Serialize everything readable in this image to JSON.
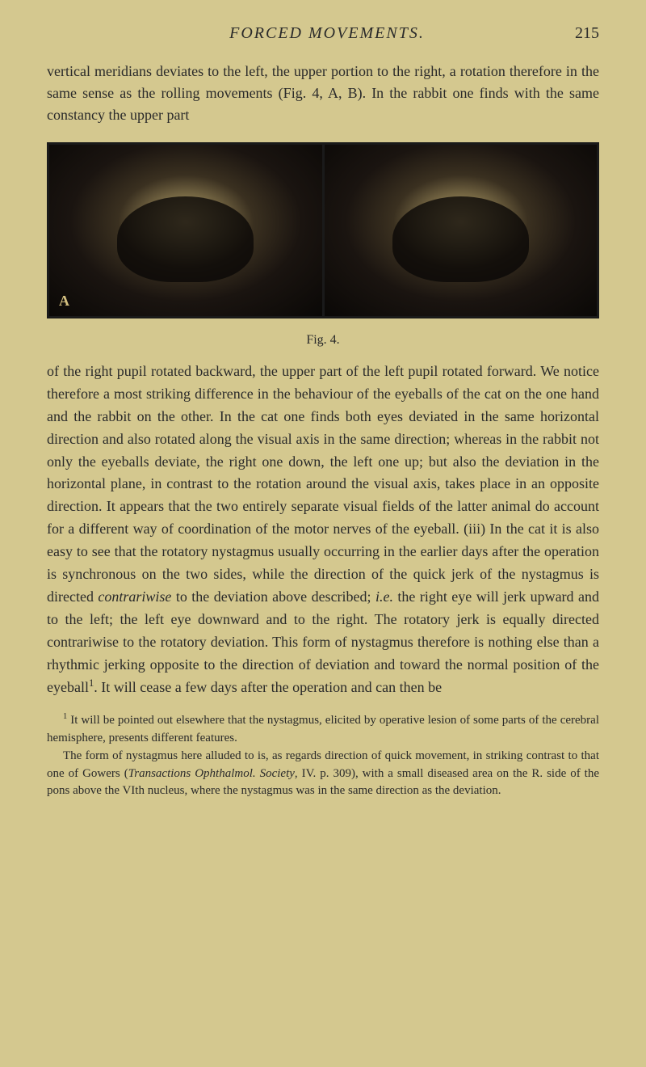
{
  "page": {
    "running_head": "FORCED MOVEMENTS.",
    "page_number": "215",
    "background_color": "#d4c88f",
    "text_color": "#2a2a2a"
  },
  "intro": "vertical meridians deviates to the left, the upper portion to the right, a rotation therefore in the same sense as the rolling movements (Fig. 4, A, B). In the rabbit one finds with the same constancy the upper part",
  "figure": {
    "caption": "Fig. 4.",
    "panel_a_label": "A",
    "border_color": "#1a1a1a"
  },
  "body": {
    "part1": "of the right pupil rotated backward, the upper part of the left pupil rotated forward. We notice therefore a most striking difference in the behaviour of the eyeballs of the cat on the one hand and the rabbit on the other. In the cat one finds both eyes deviated in the same horizontal direction and also rotated along the visual axis in the same direction; whereas in the rabbit not only the eyeballs deviate, the right one down, the left one up; but also the deviation in the horizontal plane, in contrast to the rotation around the visual axis, takes place in an opposite direction. It appears that the two entirely separate visual fields of the latter animal do account for a different way of coordination of the motor nerves of the eyeball. (iii) In the cat it is also easy to see that the rotatory nystagmus usually occurring in the earlier days after the operation is synchronous on the two sides, while the direction of the quick jerk of the nystagmus is directed ",
    "italic1": "contrariwise",
    "part2": " to the deviation above described; ",
    "italic2": "i.e.",
    "part3": " the right eye will jerk upward and to the left; the left eye downward and to the right. The rotatory jerk is equally directed contrariwise to the rotatory deviation. This form of nystagmus therefore is nothing else than a rhythmic jerking opposite to the direction of deviation and toward the normal position of the eyeball",
    "sup1": "1",
    "part4": ". It will cease a few days after the operation and can then be"
  },
  "footnote": {
    "marker": "1",
    "part1": " It will be pointed out elsewhere that the nystagmus, elicited by operative lesion of some parts of the cerebral hemisphere, presents different features.",
    "part2_intro": "The form of nystagmus here alluded to is, as regards direction of quick movement, in striking contrast to that one of ",
    "author": "Gowers",
    "source_open": " (",
    "source_italic": "Transactions Ophthalmol. Society",
    "source_close": ", ",
    "vol": "IV.",
    "after_vol": " p. 309), with a small diseased area on the R. side of the pons above the VIth nucleus, where the nystagmus was in the same direction as the deviation."
  },
  "typography": {
    "body_fontsize": 18,
    "footnote_fontsize": 15,
    "line_height": 1.55
  }
}
